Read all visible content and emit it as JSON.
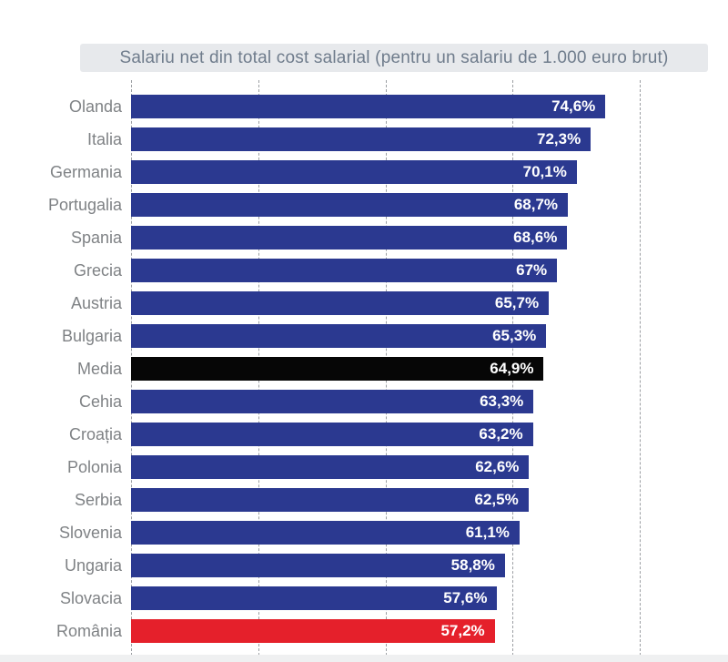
{
  "title": "Salariu net din total cost salarial (pentru un salariu de 1.000 euro brut)",
  "colors": {
    "bar_navy": "#2B3990",
    "bar_black": "#060606",
    "bar_red": "#E5202B",
    "title_bg": "#E7E9EC",
    "title_text": "#6F7C8C",
    "category_text": "#7F8285",
    "value_text": "#FFFFFF",
    "gridline": "#9C9FA3"
  },
  "chart_data": {
    "type": "bar",
    "orientation": "horizontal",
    "title": "Salariu net din total cost salarial (pentru un salariu de 1.000 euro brut)",
    "xlabel": "",
    "ylabel": "",
    "xlim": [
      0,
      80
    ],
    "grid": true,
    "gridline_values": [
      0,
      20,
      40,
      60,
      80
    ],
    "legend": false,
    "bars": [
      {
        "label": "Olanda",
        "value": 74.6,
        "display": "74,6%",
        "color": "navy"
      },
      {
        "label": "Italia",
        "value": 72.3,
        "display": "72,3%",
        "color": "navy"
      },
      {
        "label": "Germania",
        "value": 70.1,
        "display": "70,1%",
        "color": "navy"
      },
      {
        "label": "Portugalia",
        "value": 68.7,
        "display": "68,7%",
        "color": "navy"
      },
      {
        "label": "Spania",
        "value": 68.6,
        "display": "68,6%",
        "color": "navy"
      },
      {
        "label": "Grecia",
        "value": 67.0,
        "display": "67%",
        "color": "navy"
      },
      {
        "label": "Austria",
        "value": 65.7,
        "display": "65,7%",
        "color": "navy"
      },
      {
        "label": "Bulgaria",
        "value": 65.3,
        "display": "65,3%",
        "color": "navy"
      },
      {
        "label": "Media",
        "value": 64.9,
        "display": "64,9%",
        "color": "black"
      },
      {
        "label": "Cehia",
        "value": 63.3,
        "display": "63,3%",
        "color": "navy"
      },
      {
        "label": "Croația",
        "value": 63.2,
        "display": "63,2%",
        "color": "navy"
      },
      {
        "label": "Polonia",
        "value": 62.6,
        "display": "62,6%",
        "color": "navy"
      },
      {
        "label": "Serbia",
        "value": 62.5,
        "display": "62,5%",
        "color": "navy"
      },
      {
        "label": "Slovenia",
        "value": 61.1,
        "display": "61,1%",
        "color": "navy"
      },
      {
        "label": "Ungaria",
        "value": 58.8,
        "display": "58,8%",
        "color": "navy"
      },
      {
        "label": "Slovacia",
        "value": 57.6,
        "display": "57,6%",
        "color": "navy"
      },
      {
        "label": "România",
        "value": 57.2,
        "display": "57,2%",
        "color": "red"
      }
    ]
  }
}
